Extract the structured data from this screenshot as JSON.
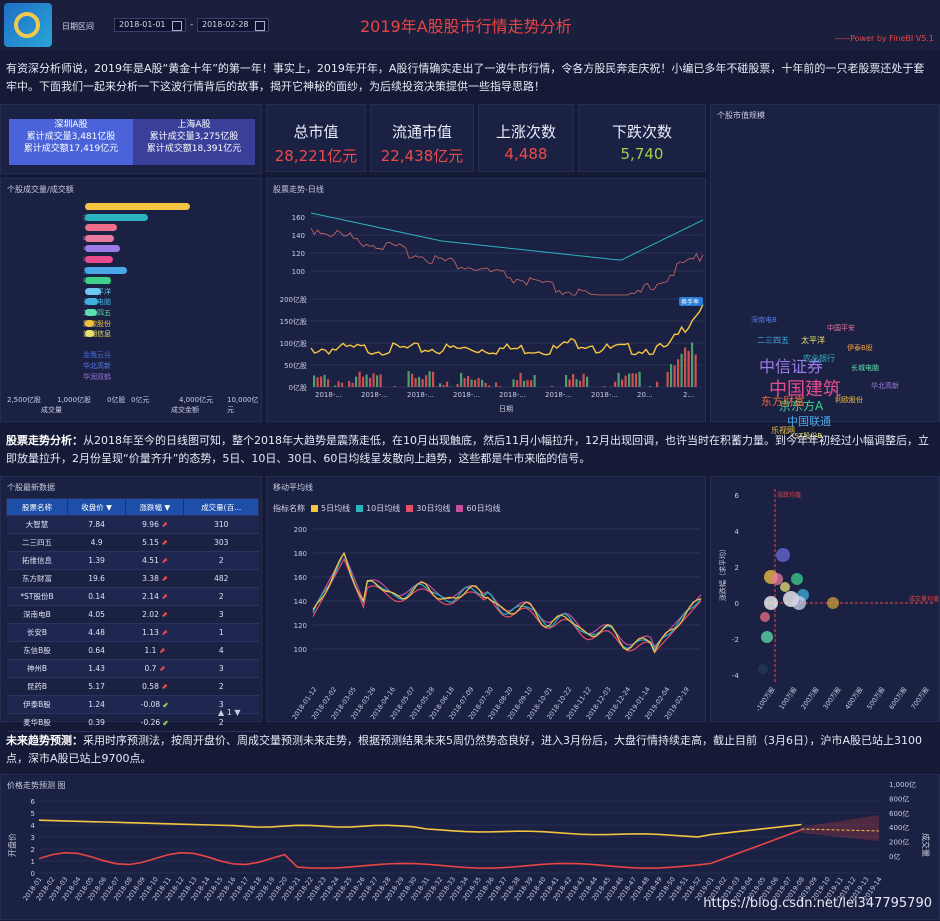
{
  "header": {
    "date_label": "日期区间",
    "date_start": "2018-01-01",
    "date_end": "2018-02-28",
    "title": "2019年A股股市行情走势分析",
    "powered": "——Power by FineBI V5.1"
  },
  "intro": "有资深分析师说，2019年是A股“黄金十年”的第一年！事实上，2019年开年，A股行情确实走出了一波牛市行情，令各方股民奔走庆祝！小编已多年不碰股票，十年前的一只老股票还处于套牢中。下面我们一起来分析一下这波行情背后的故事，揭开它神秘的面纱，为后续投资决策提供一些指导思路！",
  "markets": [
    {
      "name": "深圳A股",
      "line1": "累计成交量3,481亿股",
      "line2": "累计成交额17,419亿元"
    },
    {
      "name": "上海A股",
      "line1": "累计成交量3,275亿股",
      "line2": "累计成交额18,391亿元"
    }
  ],
  "kpis": [
    {
      "label": "总市值",
      "value": "28,221亿元"
    },
    {
      "label": "流通市值",
      "value": "22,438亿元"
    },
    {
      "label": "上涨次数",
      "value": "4,488"
    },
    {
      "label": "下跌次数",
      "value": "5,740"
    }
  ],
  "panels": {
    "volume_title": "个股成交量/成交额",
    "trend_title": "股票走势-日线",
    "cloud_title": "个股市值规模",
    "table_title": "个股最新数据",
    "ma_title": "移动平均线",
    "forecast_title": "价格走势预测 图"
  },
  "volume_chart": {
    "stocks": [
      "京东方A",
      "农业银行",
      "乐视网",
      "中国平安",
      "中信证券",
      "中国建筑",
      "东方财富",
      "中国联通",
      "太平洋",
      "长城电脑",
      "二三四五",
      "利欧股份",
      "浪潮信息",
      "",
      "金鹰云谷",
      "华北高新",
      "华润双鹤"
    ],
    "colors": [
      "#f5c542",
      "#2bb3c0",
      "#ef6f8a",
      "#e87aa0",
      "#9d7be8",
      "#e74c8f",
      "#4aa8e8",
      "#3fd08a",
      "#6ec8f0",
      "#3fb0e0",
      "#5de0b0",
      "#f0c040",
      "#e8e070",
      "#3a7ae8",
      "#4a6ad8",
      "#5a7ae8",
      "#9a7ad8"
    ],
    "volume": [
      1.0,
      0.6,
      0.3,
      0.28,
      0.33,
      0.27,
      0.4,
      0.25,
      0.15,
      0.12,
      0.11,
      0.09,
      0.09,
      0.0,
      0.0,
      0.0,
      0.0
    ],
    "amount": [
      0.0,
      0.0,
      0.0,
      0.0,
      0.0,
      0.0,
      0.0,
      0.0,
      0.0,
      0.0,
      0.0,
      0.0,
      0.0,
      0.0,
      0.0,
      0.0,
      0.0
    ],
    "left_ticks": [
      "2,500亿股",
      "1,000亿股",
      "0亿股"
    ],
    "right_ticks": [
      "0亿元",
      "4,000亿元",
      "10,000亿元"
    ],
    "left_axis": "成交量",
    "right_axis": "成交金额"
  },
  "trend_chart": {
    "price_ticks": [
      "160",
      "140",
      "120",
      "100"
    ],
    "vol_ticks": [
      "200亿股",
      "150亿股",
      "100亿股",
      "50亿股",
      "0亿股"
    ],
    "x_labels": [
      "2018-...",
      "2018-...",
      "2018-...",
      "2018-...",
      "2018-...",
      "2018-...",
      "2018-...",
      "20...",
      "2..."
    ],
    "xlabel": "日期",
    "tag": "换手率"
  },
  "word_cloud": [
    {
      "t": "中国建筑",
      "c": "#e84c8f"
    },
    {
      "t": "中信证券",
      "c": "#9d7be8"
    },
    {
      "t": "京东方A",
      "c": "#3fd08a"
    },
    {
      "t": "中国联通",
      "c": "#4aa8e8"
    },
    {
      "t": "东方财富",
      "c": "#ef6f3a"
    },
    {
      "t": "乐视网",
      "c": "#f5c542"
    },
    {
      "t": "二三四五",
      "c": "#3fb0e0"
    },
    {
      "t": "太平洋",
      "c": "#e8e070"
    },
    {
      "t": "农业银行",
      "c": "#2bb3c0"
    },
    {
      "t": "中国平安",
      "c": "#e87aa0"
    },
    {
      "t": "长城电脑",
      "c": "#5de0b0"
    },
    {
      "t": "利欧股份",
      "c": "#f0c040"
    },
    {
      "t": "华北高新",
      "c": "#9a7ad8"
    },
    {
      "t": "伊泰B股",
      "c": "#f0a040"
    },
    {
      "t": "*ST股份B",
      "c": "#e8e070"
    },
    {
      "t": "深南电B",
      "c": "#5a7ae8"
    }
  ],
  "analysis1": "股票走势分析：从2018年至今的日线图可知，整个2018年大趋势是震荡走低，在10月出现触底，然后11月小幅拉升，12月出现回调，也许当时在积蓄力量。到今年年初经过小幅调整后，立即放量拉升，2月份呈现“价量齐升”的态势，5日、10日、30日、60日均线呈发散向上趋势，这些都是牛市来临的信号。",
  "analysis1_bold": "股票走势分析：",
  "table": {
    "headers": [
      "股票名称",
      "收盘价",
      "涨跌幅",
      "成交量(百..."
    ],
    "rows": [
      [
        "大智慧",
        "7.84",
        "9.96",
        "up",
        "310"
      ],
      [
        "二三四五",
        "4.9",
        "5.15",
        "up",
        "303"
      ],
      [
        "拓维信息",
        "1.39",
        "4.51",
        "up",
        "2"
      ],
      [
        "东方财富",
        "19.6",
        "3.38",
        "up",
        "482"
      ],
      [
        "*ST股份B",
        "0.14",
        "2.14",
        "up",
        "2"
      ],
      [
        "深南电B",
        "4.05",
        "2.02",
        "up",
        "3"
      ],
      [
        "长安B",
        "4.48",
        "1.13",
        "up",
        "1"
      ],
      [
        "东信B股",
        "0.64",
        "1.1",
        "up",
        "4"
      ],
      [
        "神州B",
        "1.43",
        "0.7",
        "up",
        "3"
      ],
      [
        "昆药B",
        "5.17",
        "0.58",
        "up",
        "2"
      ],
      [
        "伊泰B股",
        "1.24",
        "-0.08",
        "dn",
        "3"
      ],
      [
        "麦华B股",
        "0.39",
        "-0.26",
        "dn",
        "2"
      ]
    ],
    "pager": "1"
  },
  "ma_chart": {
    "legend_title": "指标名称",
    "series": [
      {
        "name": "5日均线",
        "color": "#f5c542"
      },
      {
        "name": "10日均线",
        "color": "#2bb3c0"
      },
      {
        "name": "30日均线",
        "color": "#e84c6a"
      },
      {
        "name": "60日均线",
        "color": "#c44e9a"
      }
    ],
    "y_ticks": [
      "200",
      "180",
      "160",
      "140",
      "120",
      "100"
    ],
    "x_labels": [
      "2018-01-12",
      "2018-02-02",
      "2018-03-05",
      "2018-03-26",
      "2018-04-16",
      "2018-05-07",
      "2018-05-28",
      "2018-06-18",
      "2018-07-09",
      "2018-07-30",
      "2018-08-20",
      "2018-09-10",
      "2018-10-01",
      "2018-10-22",
      "2018-11-12",
      "2018-12-03",
      "2018-12-24",
      "2019-01-14",
      "2019-02-04",
      "2019-02-19"
    ]
  },
  "scatter": {
    "ylabel": "涨跌幅（求平均）",
    "y_ticks": [
      "6",
      "4",
      "2",
      "0",
      "-2",
      "-4"
    ],
    "x_ticks": [
      "-100万股",
      "100万股",
      "200万股",
      "300万股",
      "400万股",
      "500万股",
      "600万股",
      "700万股"
    ],
    "h_tag": "成交量均值",
    "v_tag": "涨跌均值"
  },
  "analysis2_bold": "未来趋势预测：",
  "analysis2": "采用时序预测法，按周开盘价、周成交量预测未来走势，根据预测结果未来5周仍然势态良好，进入3月份后，大盘行情持续走高，截止目前（3月6日），沪市A股已站上3100点，深市A股已站上9700点。",
  "forecast": {
    "left_axis": "开盘价",
    "right_axis": "成交量",
    "left_ticks": [
      "6",
      "5",
      "4",
      "3",
      "2",
      "1",
      "0"
    ],
    "right_ticks": [
      "1,000亿",
      "800亿",
      "600亿",
      "400亿",
      "200亿",
      "0亿"
    ],
    "x_labels": [
      "2018-01",
      "2018-02",
      "2018-03",
      "2018-04",
      "2018-05",
      "2018-06",
      "2018-07",
      "2018-08",
      "2018-09",
      "2018-10",
      "2018-11",
      "2018-12",
      "2018-13",
      "2018-14",
      "2018-15",
      "2018-16",
      "2018-17",
      "2018-18",
      "2018-19",
      "2018-20",
      "2018-21",
      "2018-22",
      "2018-23",
      "2018-24",
      "2018-25",
      "2018-26",
      "2018-27",
      "2018-28",
      "2018-29",
      "2018-30",
      "2018-31",
      "2018-32",
      "2018-33",
      "2018-34",
      "2018-35",
      "2018-36",
      "2018-37",
      "2018-38",
      "2018-39",
      "2018-40",
      "2018-41",
      "2018-42",
      "2018-43",
      "2018-44",
      "2018-45",
      "2018-46",
      "2018-47",
      "2018-48",
      "2018-49",
      "2018-50",
      "2018-51",
      "2018-52",
      "2019-01",
      "2019-02",
      "2019-03",
      "2019-04",
      "2019-05",
      "2019-06",
      "2019-07",
      "2019-08",
      "2019-09",
      "2019-10",
      "2019-11",
      "2019-12",
      "2019-13",
      "2019-14"
    ]
  },
  "watermark": "https://blog.csdn.net/lei347795790"
}
